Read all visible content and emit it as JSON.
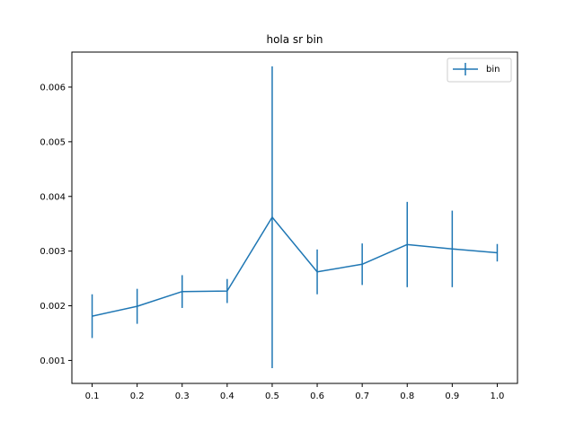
{
  "chart_data": {
    "type": "line",
    "title": "hola sr bin",
    "xlabel": "",
    "ylabel": "",
    "x": [
      0.1,
      0.2,
      0.3,
      0.4,
      0.5,
      0.6,
      0.7,
      0.8,
      0.9,
      1.0
    ],
    "x_tick_labels": [
      "0.1",
      "0.2",
      "0.3",
      "0.4",
      "0.5",
      "0.6",
      "0.7",
      "0.8",
      "0.9",
      "1.0"
    ],
    "y_ticks": [
      0.001,
      0.002,
      0.003,
      0.004,
      0.005,
      0.006
    ],
    "y_tick_labels": [
      "0.001",
      "0.002",
      "0.003",
      "0.004",
      "0.005",
      "0.006"
    ],
    "xlim": [
      0.055,
      1.045
    ],
    "ylim": [
      0.00058,
      0.00664
    ],
    "series": [
      {
        "name": "bin",
        "color": "#1f77b4",
        "values": [
          0.00181,
          0.00199,
          0.00226,
          0.00227,
          0.00362,
          0.00262,
          0.00276,
          0.00312,
          0.00304,
          0.00297
        ],
        "yerr": [
          0.0004,
          0.00032,
          0.0003,
          0.00022,
          0.00276,
          0.00041,
          0.00038,
          0.00078,
          0.0007,
          0.00016
        ]
      }
    ],
    "grid": false,
    "legend_position": "top-right"
  }
}
